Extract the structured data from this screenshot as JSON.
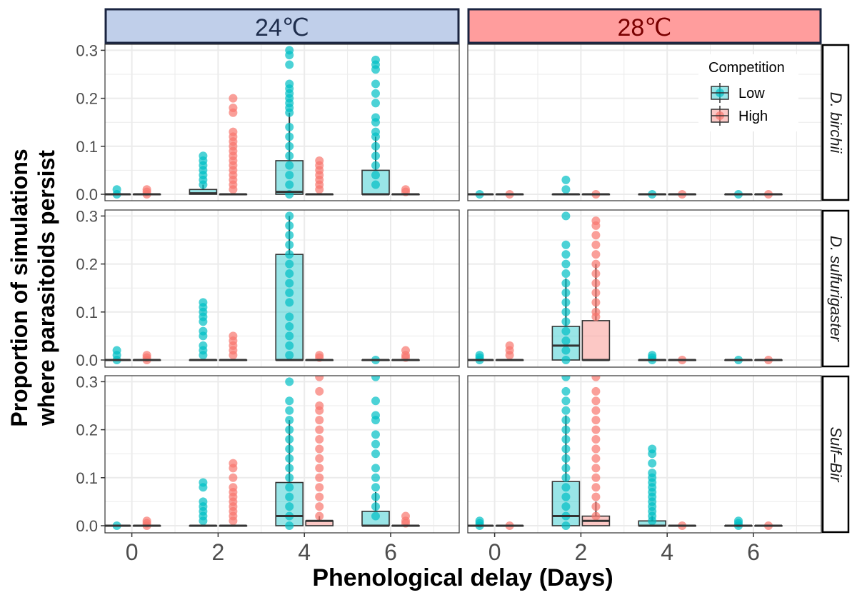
{
  "chart_data": {
    "type": "box",
    "xlabel": "Phenological delay (Days)",
    "ylabel_lines": [
      "Proportion of simulations",
      "where parasitoids persist"
    ],
    "x_ticks": [
      "0",
      "2",
      "4",
      "6"
    ],
    "y_ticks": [
      "0.0",
      "0.1",
      "0.2",
      "0.3"
    ],
    "ylim": [
      0,
      0.3
    ],
    "columns": [
      "24℃",
      "28℃"
    ],
    "rows": [
      "D. birchii",
      "D. sulfurigaster",
      "Sulf–Bir"
    ],
    "legend": {
      "title": "Competition",
      "items": [
        "Low",
        "High"
      ],
      "placement": "top-right"
    },
    "colors": {
      "Low": "#00bfc4",
      "High": "#f8766d",
      "strip_24": "#c0cfea",
      "strip_28": "#ff9d9d",
      "strip_24_text": "#1f2e4d",
      "strip_28_text": "#7a0000"
    },
    "panels": [
      {
        "row": 0,
        "col": 0,
        "groups": [
          {
            "delay": 0,
            "comp": "Low",
            "q1": 0,
            "med": 0,
            "q3": 0,
            "whi": 0,
            "points": [
              0,
              0.01
            ]
          },
          {
            "delay": 0,
            "comp": "High",
            "q1": 0,
            "med": 0,
            "q3": 0,
            "whi": 0,
            "points": [
              0,
              0.005,
              0.01
            ]
          },
          {
            "delay": 2,
            "comp": "Low",
            "q1": 0,
            "med": 0.002,
            "q3": 0.01,
            "whi": 0.02,
            "points": [
              0.02,
              0.03,
              0.04,
              0.05,
              0.06,
              0.07,
              0.08
            ]
          },
          {
            "delay": 2,
            "comp": "High",
            "q1": 0,
            "med": 0,
            "q3": 0,
            "whi": 0,
            "points": [
              0.01,
              0.02,
              0.03,
              0.04,
              0.05,
              0.06,
              0.07,
              0.08,
              0.09,
              0.1,
              0.11,
              0.12,
              0.13,
              0.17,
              0.18,
              0.2
            ]
          },
          {
            "delay": 4,
            "comp": "Low",
            "q1": 0,
            "med": 0.005,
            "q3": 0.07,
            "whi": 0.17,
            "points": [
              0.0,
              0.02,
              0.04,
              0.06,
              0.08,
              0.1,
              0.12,
              0.14,
              0.17,
              0.18,
              0.19,
              0.2,
              0.21,
              0.22,
              0.23,
              0.27,
              0.29,
              0.3
            ]
          },
          {
            "delay": 4,
            "comp": "High",
            "q1": 0,
            "med": 0,
            "q3": 0,
            "whi": 0,
            "points": [
              0.01,
              0.02,
              0.03,
              0.04,
              0.05,
              0.06,
              0.07
            ]
          },
          {
            "delay": 6,
            "comp": "Low",
            "q1": 0,
            "med": 0,
            "q3": 0.05,
            "whi": 0.12,
            "points": [
              0.02,
              0.04,
              0.06,
              0.08,
              0.1,
              0.12,
              0.13,
              0.15,
              0.16,
              0.19,
              0.21,
              0.23,
              0.26,
              0.27,
              0.28
            ]
          },
          {
            "delay": 6,
            "comp": "High",
            "q1": 0,
            "med": 0,
            "q3": 0,
            "whi": 0,
            "points": [
              0.005,
              0.01
            ]
          }
        ]
      },
      {
        "row": 0,
        "col": 1,
        "groups": [
          {
            "delay": 0,
            "comp": "Low",
            "q1": 0,
            "med": 0,
            "q3": 0,
            "whi": 0,
            "points": [
              0
            ]
          },
          {
            "delay": 0,
            "comp": "High",
            "q1": 0,
            "med": 0,
            "q3": 0,
            "whi": 0,
            "points": [
              0
            ]
          },
          {
            "delay": 2,
            "comp": "Low",
            "q1": 0,
            "med": 0,
            "q3": 0,
            "whi": 0,
            "points": [
              0.01,
              0.03
            ]
          },
          {
            "delay": 2,
            "comp": "High",
            "q1": 0,
            "med": 0,
            "q3": 0,
            "whi": 0,
            "points": [
              0
            ]
          },
          {
            "delay": 4,
            "comp": "Low",
            "q1": 0,
            "med": 0,
            "q3": 0,
            "whi": 0,
            "points": [
              0
            ]
          },
          {
            "delay": 4,
            "comp": "High",
            "q1": 0,
            "med": 0,
            "q3": 0,
            "whi": 0,
            "points": [
              0
            ]
          },
          {
            "delay": 6,
            "comp": "Low",
            "q1": 0,
            "med": 0,
            "q3": 0,
            "whi": 0,
            "points": [
              0
            ]
          },
          {
            "delay": 6,
            "comp": "High",
            "q1": 0,
            "med": 0,
            "q3": 0,
            "whi": 0,
            "points": [
              0
            ]
          }
        ]
      },
      {
        "row": 1,
        "col": 0,
        "groups": [
          {
            "delay": 0,
            "comp": "Low",
            "q1": 0,
            "med": 0,
            "q3": 0,
            "whi": 0,
            "points": [
              0,
              0.01,
              0.02
            ]
          },
          {
            "delay": 0,
            "comp": "High",
            "q1": 0,
            "med": 0,
            "q3": 0,
            "whi": 0,
            "points": [
              0,
              0.005,
              0.01
            ]
          },
          {
            "delay": 2,
            "comp": "Low",
            "q1": 0,
            "med": 0,
            "q3": 0,
            "whi": 0,
            "points": [
              0.01,
              0.02,
              0.03,
              0.05,
              0.06,
              0.08,
              0.09,
              0.1,
              0.11,
              0.12
            ]
          },
          {
            "delay": 2,
            "comp": "High",
            "q1": 0,
            "med": 0,
            "q3": 0,
            "whi": 0,
            "points": [
              0.01,
              0.02,
              0.03,
              0.04,
              0.05
            ]
          },
          {
            "delay": 4,
            "comp": "Low",
            "q1": 0,
            "med": 0,
            "q3": 0.22,
            "whi": 0.3,
            "points": [
              0.01,
              0.03,
              0.05,
              0.07,
              0.09,
              0.12,
              0.14,
              0.16,
              0.18,
              0.2,
              0.22,
              0.24,
              0.26,
              0.28,
              0.3
            ]
          },
          {
            "delay": 4,
            "comp": "High",
            "q1": 0,
            "med": 0,
            "q3": 0,
            "whi": 0,
            "points": [
              0.005,
              0.01
            ]
          },
          {
            "delay": 6,
            "comp": "Low",
            "q1": 0,
            "med": 0,
            "q3": 0,
            "whi": 0,
            "points": [
              0
            ]
          },
          {
            "delay": 6,
            "comp": "High",
            "q1": 0,
            "med": 0,
            "q3": 0,
            "whi": 0,
            "points": [
              0.005,
              0.01,
              0.02
            ]
          }
        ]
      },
      {
        "row": 1,
        "col": 1,
        "groups": [
          {
            "delay": 0,
            "comp": "Low",
            "q1": 0,
            "med": 0,
            "q3": 0,
            "whi": 0,
            "points": [
              0,
              0.005,
              0.01
            ]
          },
          {
            "delay": 0,
            "comp": "High",
            "q1": 0,
            "med": 0,
            "q3": 0,
            "whi": 0,
            "points": [
              0.01,
              0.02,
              0.03
            ]
          },
          {
            "delay": 2,
            "comp": "Low",
            "q1": 0,
            "med": 0.03,
            "q3": 0.07,
            "whi": 0.17,
            "points": [
              0.0,
              0.02,
              0.04,
              0.06,
              0.08,
              0.1,
              0.12,
              0.14,
              0.16,
              0.18,
              0.2,
              0.22,
              0.24,
              0.3
            ]
          },
          {
            "delay": 2,
            "comp": "High",
            "q1": 0,
            "med": 0,
            "q3": 0.082,
            "whi": 0.2,
            "points": [
              0.09,
              0.1,
              0.12,
              0.14,
              0.16,
              0.18,
              0.2,
              0.22,
              0.24,
              0.26,
              0.28,
              0.29
            ]
          },
          {
            "delay": 4,
            "comp": "Low",
            "q1": 0,
            "med": 0,
            "q3": 0,
            "whi": 0,
            "points": [
              0,
              0.005,
              0.01
            ]
          },
          {
            "delay": 4,
            "comp": "High",
            "q1": 0,
            "med": 0,
            "q3": 0,
            "whi": 0,
            "points": [
              0
            ]
          },
          {
            "delay": 6,
            "comp": "Low",
            "q1": 0,
            "med": 0,
            "q3": 0,
            "whi": 0,
            "points": [
              0
            ]
          },
          {
            "delay": 6,
            "comp": "High",
            "q1": 0,
            "med": 0,
            "q3": 0,
            "whi": 0,
            "points": [
              0
            ]
          }
        ]
      },
      {
        "row": 2,
        "col": 0,
        "groups": [
          {
            "delay": 0,
            "comp": "Low",
            "q1": 0,
            "med": 0,
            "q3": 0,
            "whi": 0,
            "points": [
              0
            ]
          },
          {
            "delay": 0,
            "comp": "High",
            "q1": 0,
            "med": 0,
            "q3": 0,
            "whi": 0,
            "points": [
              0,
              0.005,
              0.01
            ]
          },
          {
            "delay": 2,
            "comp": "Low",
            "q1": 0,
            "med": 0,
            "q3": 0,
            "whi": 0,
            "points": [
              0.01,
              0.02,
              0.03,
              0.04,
              0.05,
              0.08,
              0.09
            ]
          },
          {
            "delay": 2,
            "comp": "High",
            "q1": 0,
            "med": 0,
            "q3": 0,
            "whi": 0,
            "points": [
              0.01,
              0.02,
              0.03,
              0.04,
              0.05,
              0.06,
              0.07,
              0.08,
              0.1,
              0.12,
              0.13
            ]
          },
          {
            "delay": 4,
            "comp": "Low",
            "q1": 0,
            "med": 0.02,
            "q3": 0.09,
            "whi": 0.22,
            "points": [
              0.0,
              0.02,
              0.04,
              0.06,
              0.08,
              0.1,
              0.12,
              0.14,
              0.16,
              0.18,
              0.2,
              0.22,
              0.24,
              0.26,
              0.3
            ]
          },
          {
            "delay": 4,
            "comp": "High",
            "q1": 0,
            "med": 0.01,
            "q3": 0.01,
            "whi": 0.02,
            "points": [
              0.02,
              0.04,
              0.06,
              0.08,
              0.1,
              0.12,
              0.14,
              0.16,
              0.18,
              0.2,
              0.22,
              0.24,
              0.25,
              0.28,
              0.31
            ]
          },
          {
            "delay": 6,
            "comp": "Low",
            "q1": 0,
            "med": 0,
            "q3": 0.03,
            "whi": 0.07,
            "points": [
              0.02,
              0.04,
              0.06,
              0.08,
              0.1,
              0.12,
              0.15,
              0.17,
              0.19,
              0.22,
              0.23,
              0.26,
              0.31
            ]
          },
          {
            "delay": 6,
            "comp": "High",
            "q1": 0,
            "med": 0,
            "q3": 0,
            "whi": 0,
            "points": [
              0.005,
              0.01,
              0.02
            ]
          }
        ]
      },
      {
        "row": 2,
        "col": 1,
        "groups": [
          {
            "delay": 0,
            "comp": "Low",
            "q1": 0,
            "med": 0,
            "q3": 0,
            "whi": 0,
            "points": [
              0,
              0.005,
              0.01
            ]
          },
          {
            "delay": 0,
            "comp": "High",
            "q1": 0,
            "med": 0,
            "q3": 0,
            "whi": 0,
            "points": [
              0
            ]
          },
          {
            "delay": 2,
            "comp": "Low",
            "q1": 0,
            "med": 0.02,
            "q3": 0.092,
            "whi": 0.23,
            "points": [
              0.0,
              0.02,
              0.04,
              0.06,
              0.08,
              0.1,
              0.12,
              0.14,
              0.16,
              0.18,
              0.2,
              0.22,
              0.24,
              0.26,
              0.28,
              0.31
            ]
          },
          {
            "delay": 2,
            "comp": "High",
            "q1": 0,
            "med": 0.01,
            "q3": 0.02,
            "whi": 0.05,
            "points": [
              0.02,
              0.04,
              0.06,
              0.08,
              0.1,
              0.12,
              0.14,
              0.16,
              0.18,
              0.2,
              0.22,
              0.24,
              0.26,
              0.28,
              0.31
            ]
          },
          {
            "delay": 4,
            "comp": "Low",
            "q1": 0,
            "med": 0,
            "q3": 0.01,
            "whi": 0.02,
            "points": [
              0.01,
              0.02,
              0.03,
              0.04,
              0.05,
              0.06,
              0.07,
              0.08,
              0.09,
              0.1,
              0.11,
              0.13,
              0.15,
              0.16
            ]
          },
          {
            "delay": 4,
            "comp": "High",
            "q1": 0,
            "med": 0,
            "q3": 0,
            "whi": 0,
            "points": [
              0
            ]
          },
          {
            "delay": 6,
            "comp": "Low",
            "q1": 0,
            "med": 0,
            "q3": 0,
            "whi": 0,
            "points": [
              0,
              0.005,
              0.01
            ]
          },
          {
            "delay": 6,
            "comp": "High",
            "q1": 0,
            "med": 0,
            "q3": 0,
            "whi": 0,
            "points": [
              0
            ]
          }
        ]
      }
    ]
  }
}
